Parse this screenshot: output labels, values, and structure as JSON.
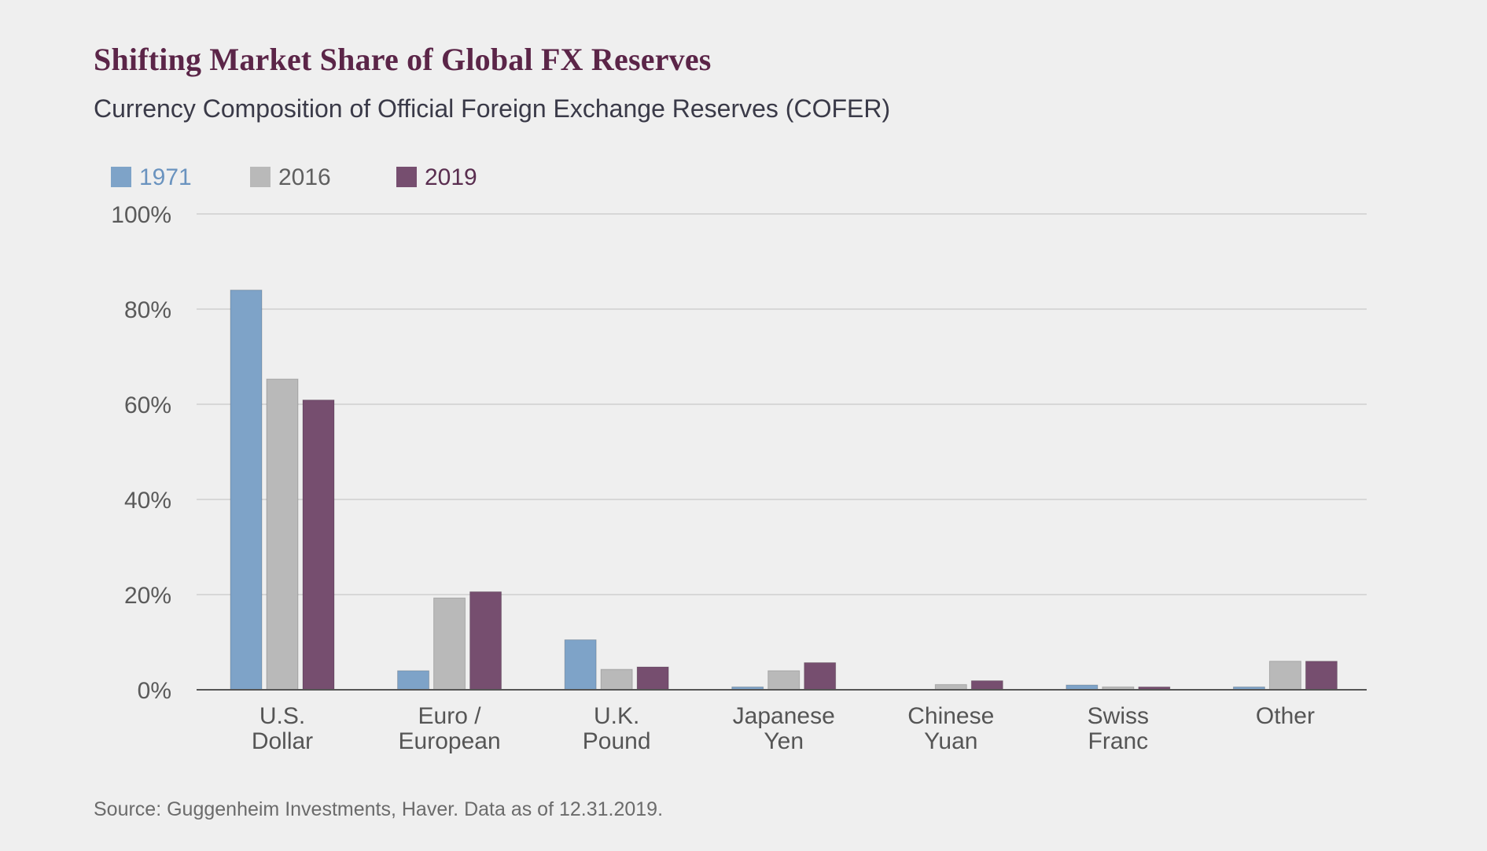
{
  "header": {
    "title": "Shifting Market Share of Global FX Reserves",
    "subtitle": "Currency Composition of Official Foreign Exchange Reserves (COFER)"
  },
  "footer": {
    "source": "Source: Guggenheim Investments, Haver. Data as of 12.31.2019."
  },
  "colors": {
    "1971": "#7ea3c8",
    "2016": "#b9b9b9",
    "2019": "#764e6f",
    "title": "#5b2548",
    "grid": "#d7d7d7",
    "axis": "#555555"
  },
  "chart_data": {
    "type": "bar",
    "title": "Shifting Market Share of Global FX Reserves",
    "subtitle": "Currency Composition of Official Foreign Exchange Reserves (COFER)",
    "xlabel": "",
    "ylabel": "",
    "ylim": [
      0,
      100
    ],
    "yticks": [
      0,
      20,
      40,
      60,
      80,
      100
    ],
    "ytick_labels": [
      "0%",
      "20%",
      "40%",
      "60%",
      "80%",
      "100%"
    ],
    "grid": true,
    "legend_position": "top-left",
    "categories": [
      [
        "U.S.",
        "Dollar"
      ],
      [
        "Euro /",
        "European"
      ],
      [
        "U.K.",
        "Pound"
      ],
      [
        "Japanese",
        "Yen"
      ],
      [
        "Chinese",
        "Yuan"
      ],
      [
        "Swiss",
        "Franc"
      ],
      [
        "Other"
      ]
    ],
    "series": [
      {
        "name": "1971",
        "color": "#7ea3c8",
        "values": [
          84,
          4,
          10.5,
          0.6,
          0,
          1,
          0.6
        ]
      },
      {
        "name": "2016",
        "color": "#b9b9b9",
        "values": [
          65.3,
          19.3,
          4.3,
          4,
          1.1,
          0.6,
          6
        ]
      },
      {
        "name": "2019",
        "color": "#764e6f",
        "values": [
          60.9,
          20.6,
          4.8,
          5.7,
          1.9,
          0.6,
          6
        ]
      }
    ]
  }
}
